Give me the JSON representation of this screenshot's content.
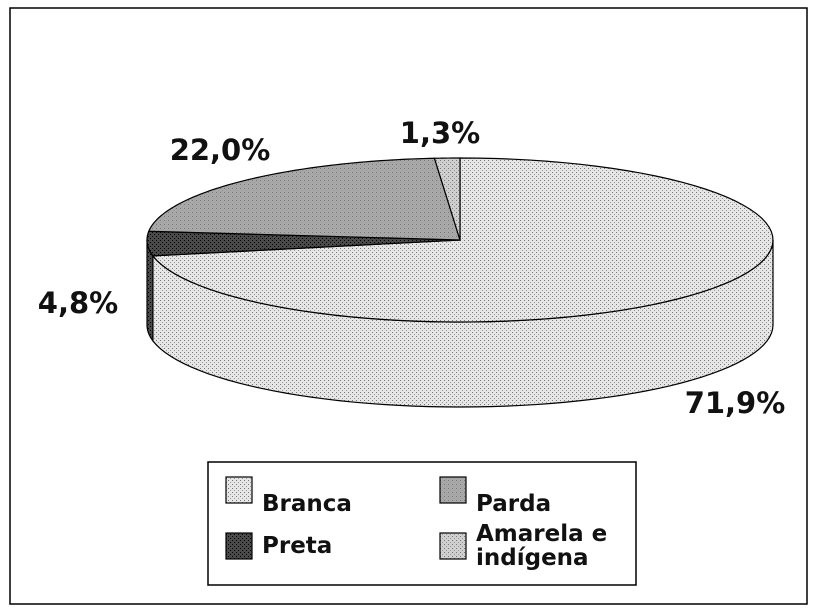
{
  "chart_data": {
    "type": "pie3d",
    "categories": [
      "Branca",
      "Preta",
      "Parda",
      "Amarela e indígena"
    ],
    "values": [
      71.9,
      4.8,
      22.0,
      1.3
    ],
    "value_labels": [
      "71,9%",
      "4,8%",
      "22,0%",
      "1,3%"
    ],
    "colors": [
      "#e6e6e6",
      "#4a4a4a",
      "#a8a8a8",
      "#cfcfcf"
    ],
    "legend": "bottom"
  }
}
